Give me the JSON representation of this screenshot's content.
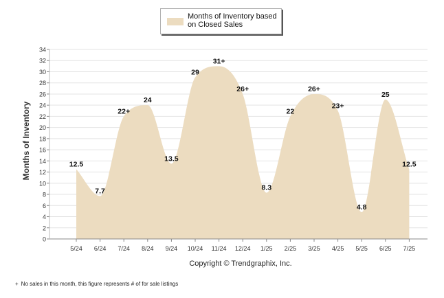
{
  "chart_data": {
    "type": "area",
    "title": "",
    "xlabel": "",
    "ylabel": "Months of Inventory",
    "ylim": [
      0,
      34
    ],
    "y_ticks": [
      0,
      2,
      4,
      6,
      8,
      10,
      12,
      14,
      16,
      18,
      20,
      22,
      24,
      26,
      28,
      30,
      32,
      34
    ],
    "grid": true,
    "legend_position": "top-center",
    "categories": [
      "5/24",
      "6/24",
      "7/24",
      "8/24",
      "9/24",
      "10/24",
      "11/24",
      "12/24",
      "1/25",
      "2/25",
      "3/25",
      "4/25",
      "5/25",
      "6/25",
      "7/25"
    ],
    "series": [
      {
        "name": "Months of Inventory based on Closed Sales",
        "color": "#ecdcc0",
        "values": [
          12.5,
          7.7,
          22,
          24,
          13.5,
          29,
          31,
          26,
          8.3,
          22,
          26,
          23,
          4.8,
          25,
          12.5
        ],
        "labels": [
          "12.5",
          "7.7",
          "22+",
          "24",
          "13.5",
          "29",
          "31+",
          "26+",
          "8.3",
          "22",
          "26+",
          "23+",
          "4.8",
          "25",
          "12.5"
        ]
      }
    ]
  },
  "copyright": "Copyright © Trendgraphix, Inc.",
  "footnote": {
    "marker": "+",
    "text": "No sales in this month, this figure represents # of for sale listings"
  }
}
